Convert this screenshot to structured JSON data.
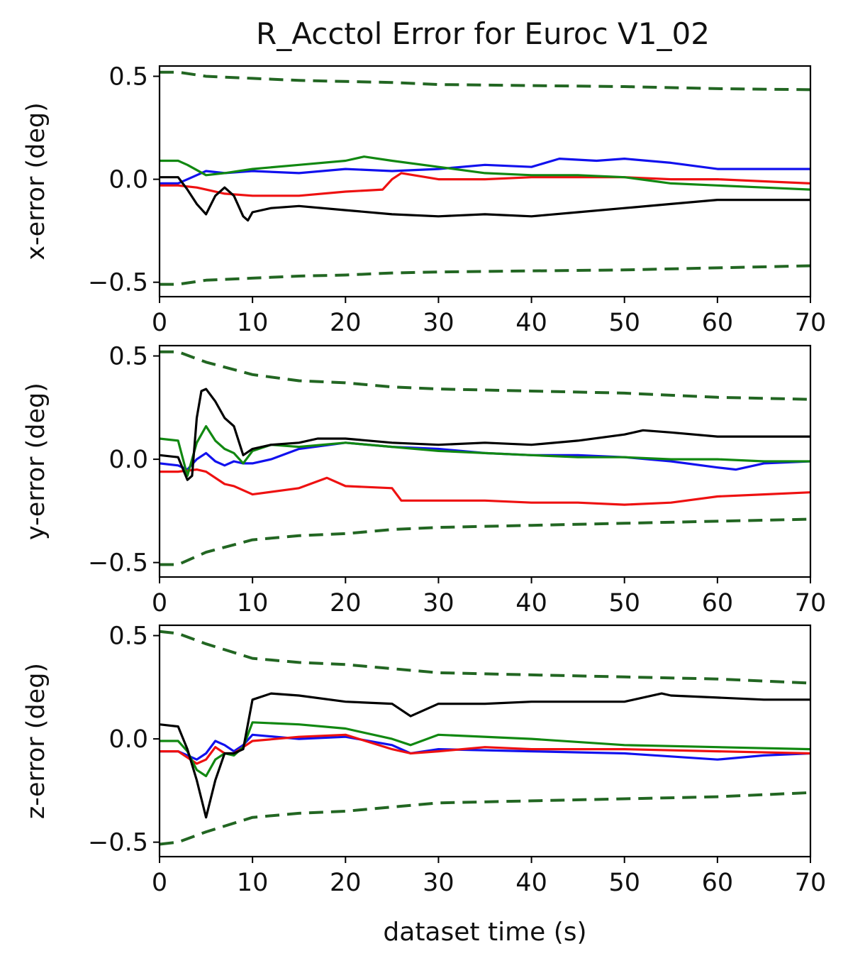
{
  "title": "R_Acctol Error for Euroc V1_02",
  "xlabel": "dataset time (s)",
  "colors": {
    "black": "#000000",
    "red": "#ee1111",
    "green": "#118811",
    "blue": "#1111ee",
    "bound": "#226622"
  },
  "chart_data": [
    {
      "type": "line",
      "ylabel": "x-error (deg)",
      "xlim": [
        0,
        70
      ],
      "ylim": [
        -0.57,
        0.55
      ],
      "xticks": [
        0,
        10,
        20,
        30,
        40,
        50,
        60,
        70
      ],
      "yticks": [
        0.5,
        0.0,
        -0.5
      ],
      "ytick_labels": [
        "0.5",
        "0.0",
        "−0.5"
      ],
      "series": [
        {
          "name": "upper-bound",
          "color": "bound",
          "dashed": true,
          "x": [
            0,
            2,
            5,
            10,
            15,
            20,
            25,
            30,
            40,
            50,
            60,
            70
          ],
          "y": [
            0.52,
            0.52,
            0.5,
            0.49,
            0.48,
            0.475,
            0.47,
            0.46,
            0.455,
            0.45,
            0.44,
            0.435
          ]
        },
        {
          "name": "lower-bound",
          "color": "bound",
          "dashed": true,
          "x": [
            0,
            2,
            5,
            10,
            15,
            20,
            25,
            30,
            40,
            50,
            60,
            70
          ],
          "y": [
            -0.51,
            -0.51,
            -0.49,
            -0.48,
            -0.47,
            -0.465,
            -0.455,
            -0.45,
            -0.445,
            -0.44,
            -0.43,
            -0.42
          ]
        },
        {
          "name": "blue",
          "color": "blue",
          "x": [
            0,
            2,
            4,
            5,
            7,
            10,
            15,
            20,
            25,
            30,
            35,
            40,
            43,
            47,
            50,
            55,
            60,
            65,
            70
          ],
          "y": [
            -0.02,
            -0.02,
            0.02,
            0.04,
            0.03,
            0.04,
            0.03,
            0.05,
            0.04,
            0.05,
            0.07,
            0.06,
            0.1,
            0.09,
            0.1,
            0.08,
            0.05,
            0.05,
            0.05
          ]
        },
        {
          "name": "red",
          "color": "red",
          "x": [
            0,
            2,
            4,
            5,
            7,
            10,
            15,
            20,
            24,
            25,
            26,
            30,
            35,
            40,
            45,
            50,
            55,
            60,
            65,
            70
          ],
          "y": [
            -0.03,
            -0.03,
            -0.04,
            -0.05,
            -0.07,
            -0.08,
            -0.08,
            -0.06,
            -0.05,
            0.0,
            0.03,
            0.0,
            0.0,
            0.01,
            0.01,
            0.01,
            0.0,
            0.0,
            -0.01,
            -0.02
          ]
        },
        {
          "name": "green",
          "color": "green",
          "x": [
            0,
            2,
            3,
            5,
            7,
            10,
            15,
            20,
            22,
            25,
            30,
            35,
            40,
            45,
            50,
            55,
            60,
            65,
            70
          ],
          "y": [
            0.09,
            0.09,
            0.07,
            0.02,
            0.03,
            0.05,
            0.07,
            0.09,
            0.11,
            0.09,
            0.06,
            0.03,
            0.02,
            0.02,
            0.01,
            -0.02,
            -0.03,
            -0.04,
            -0.05
          ]
        },
        {
          "name": "black",
          "color": "black",
          "x": [
            0,
            2,
            3,
            4,
            5,
            6,
            7,
            8,
            9,
            9.5,
            10,
            12,
            15,
            20,
            25,
            30,
            35,
            40,
            45,
            50,
            55,
            60,
            65,
            70
          ],
          "y": [
            0.01,
            0.01,
            -0.05,
            -0.12,
            -0.17,
            -0.08,
            -0.04,
            -0.08,
            -0.18,
            -0.2,
            -0.16,
            -0.14,
            -0.13,
            -0.15,
            -0.17,
            -0.18,
            -0.17,
            -0.18,
            -0.16,
            -0.14,
            -0.12,
            -0.1,
            -0.1,
            -0.1
          ]
        }
      ]
    },
    {
      "type": "line",
      "ylabel": "y-error (deg)",
      "xlim": [
        0,
        70
      ],
      "ylim": [
        -0.57,
        0.55
      ],
      "xticks": [
        0,
        10,
        20,
        30,
        40,
        50,
        60,
        70
      ],
      "yticks": [
        0.5,
        0.0,
        -0.5
      ],
      "ytick_labels": [
        "0.5",
        "0.0",
        "−0.5"
      ],
      "series": [
        {
          "name": "upper-bound",
          "color": "bound",
          "dashed": true,
          "x": [
            0,
            2,
            5,
            10,
            15,
            20,
            25,
            30,
            40,
            50,
            60,
            70
          ],
          "y": [
            0.52,
            0.52,
            0.47,
            0.41,
            0.38,
            0.37,
            0.35,
            0.34,
            0.33,
            0.32,
            0.3,
            0.29
          ]
        },
        {
          "name": "lower-bound",
          "color": "bound",
          "dashed": true,
          "x": [
            0,
            2,
            5,
            10,
            15,
            20,
            25,
            30,
            40,
            50,
            60,
            70
          ],
          "y": [
            -0.51,
            -0.51,
            -0.45,
            -0.39,
            -0.37,
            -0.36,
            -0.34,
            -0.33,
            -0.32,
            -0.31,
            -0.3,
            -0.29
          ]
        },
        {
          "name": "blue",
          "color": "blue",
          "x": [
            0,
            2,
            3,
            4,
            5,
            6,
            7,
            8,
            9,
            10,
            12,
            15,
            20,
            25,
            30,
            35,
            40,
            45,
            50,
            55,
            60,
            62,
            65,
            70
          ],
          "y": [
            -0.02,
            -0.03,
            -0.05,
            0.0,
            0.03,
            -0.01,
            -0.03,
            -0.01,
            -0.02,
            -0.02,
            0.0,
            0.05,
            0.08,
            0.06,
            0.05,
            0.03,
            0.02,
            0.02,
            0.01,
            -0.01,
            -0.04,
            -0.05,
            -0.02,
            -0.01
          ]
        },
        {
          "name": "red",
          "color": "red",
          "x": [
            0,
            2,
            4,
            5,
            7,
            8,
            10,
            15,
            18,
            20,
            25,
            26,
            30,
            35,
            40,
            45,
            50,
            55,
            60,
            65,
            70
          ],
          "y": [
            -0.06,
            -0.06,
            -0.05,
            -0.06,
            -0.12,
            -0.13,
            -0.17,
            -0.14,
            -0.09,
            -0.13,
            -0.14,
            -0.2,
            -0.2,
            -0.2,
            -0.21,
            -0.21,
            -0.22,
            -0.21,
            -0.18,
            -0.17,
            -0.16
          ]
        },
        {
          "name": "green",
          "color": "green",
          "x": [
            0,
            2,
            3,
            4,
            5,
            6,
            7,
            8,
            9,
            10,
            12,
            15,
            20,
            25,
            30,
            35,
            40,
            45,
            50,
            55,
            60,
            65,
            70
          ],
          "y": [
            0.1,
            0.09,
            -0.08,
            0.08,
            0.16,
            0.09,
            0.05,
            0.03,
            -0.02,
            0.04,
            0.07,
            0.06,
            0.08,
            0.06,
            0.04,
            0.03,
            0.02,
            0.01,
            0.01,
            0.0,
            0.0,
            -0.01,
            -0.01
          ]
        },
        {
          "name": "black",
          "color": "black",
          "x": [
            0,
            2,
            3,
            3.5,
            4,
            4.5,
            5,
            6,
            7,
            8,
            9,
            10,
            12,
            15,
            17,
            20,
            25,
            30,
            35,
            40,
            45,
            50,
            52,
            55,
            60,
            65,
            70
          ],
          "y": [
            0.02,
            0.01,
            -0.1,
            -0.08,
            0.2,
            0.33,
            0.34,
            0.28,
            0.2,
            0.16,
            0.02,
            0.05,
            0.07,
            0.08,
            0.1,
            0.1,
            0.08,
            0.07,
            0.08,
            0.07,
            0.09,
            0.12,
            0.14,
            0.13,
            0.11,
            0.11,
            0.11
          ]
        }
      ]
    },
    {
      "type": "line",
      "ylabel": "z-error (deg)",
      "xlim": [
        0,
        70
      ],
      "ylim": [
        -0.57,
        0.55
      ],
      "xticks": [
        0,
        10,
        20,
        30,
        40,
        50,
        60,
        70
      ],
      "yticks": [
        0.5,
        0.0,
        -0.5
      ],
      "ytick_labels": [
        "0.5",
        "0.0",
        "−0.5"
      ],
      "series": [
        {
          "name": "upper-bound",
          "color": "bound",
          "dashed": true,
          "x": [
            0,
            2,
            5,
            10,
            15,
            20,
            25,
            30,
            40,
            50,
            60,
            70
          ],
          "y": [
            0.52,
            0.51,
            0.46,
            0.39,
            0.37,
            0.36,
            0.34,
            0.32,
            0.31,
            0.3,
            0.29,
            0.27
          ]
        },
        {
          "name": "lower-bound",
          "color": "bound",
          "dashed": true,
          "x": [
            0,
            2,
            5,
            10,
            15,
            20,
            25,
            30,
            40,
            50,
            60,
            70
          ],
          "y": [
            -0.51,
            -0.5,
            -0.45,
            -0.38,
            -0.36,
            -0.35,
            -0.33,
            -0.31,
            -0.3,
            -0.29,
            -0.28,
            -0.26
          ]
        },
        {
          "name": "blue",
          "color": "blue",
          "x": [
            0,
            2,
            3,
            4,
            5,
            6,
            7,
            8,
            9,
            10,
            15,
            20,
            25,
            27,
            30,
            40,
            50,
            60,
            65,
            70
          ],
          "y": [
            -0.06,
            -0.06,
            -0.08,
            -0.1,
            -0.07,
            -0.01,
            -0.03,
            -0.06,
            -0.03,
            0.02,
            0.0,
            0.01,
            -0.03,
            -0.07,
            -0.05,
            -0.06,
            -0.07,
            -0.1,
            -0.08,
            -0.07
          ]
        },
        {
          "name": "red",
          "color": "red",
          "x": [
            0,
            2,
            3,
            4,
            5,
            6,
            7,
            8,
            9,
            10,
            15,
            20,
            25,
            27,
            30,
            35,
            40,
            50,
            60,
            70
          ],
          "y": [
            -0.06,
            -0.06,
            -0.09,
            -0.12,
            -0.1,
            -0.04,
            -0.07,
            -0.07,
            -0.04,
            -0.01,
            0.01,
            0.02,
            -0.05,
            -0.07,
            -0.06,
            -0.04,
            -0.05,
            -0.05,
            -0.06,
            -0.07
          ]
        },
        {
          "name": "green",
          "color": "green",
          "x": [
            0,
            2,
            3,
            4,
            5,
            6,
            7,
            8,
            9,
            10,
            15,
            20,
            25,
            27,
            30,
            40,
            50,
            60,
            70
          ],
          "y": [
            -0.01,
            -0.01,
            -0.06,
            -0.15,
            -0.18,
            -0.1,
            -0.07,
            -0.08,
            -0.04,
            0.08,
            0.07,
            0.05,
            0.0,
            -0.03,
            0.02,
            0.0,
            -0.03,
            -0.04,
            -0.05
          ]
        },
        {
          "name": "black",
          "color": "black",
          "x": [
            0,
            2,
            3,
            4,
            5,
            6,
            7,
            8,
            9,
            10,
            12,
            15,
            20,
            25,
            27,
            30,
            35,
            40,
            45,
            50,
            54,
            55,
            60,
            65,
            70
          ],
          "y": [
            0.07,
            0.06,
            -0.05,
            -0.2,
            -0.38,
            -0.2,
            -0.07,
            -0.07,
            -0.05,
            0.19,
            0.22,
            0.21,
            0.18,
            0.17,
            0.11,
            0.17,
            0.17,
            0.18,
            0.18,
            0.18,
            0.22,
            0.21,
            0.2,
            0.19,
            0.19
          ]
        }
      ]
    }
  ]
}
